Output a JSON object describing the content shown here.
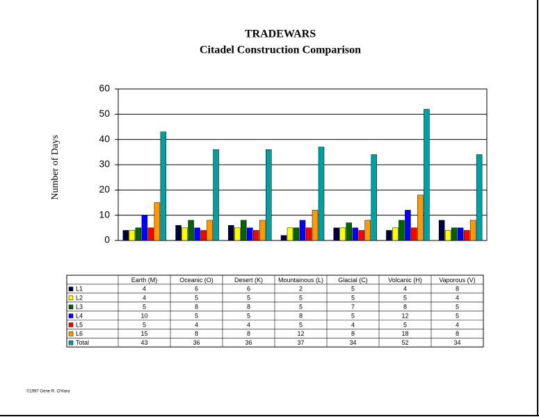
{
  "chart_data": {
    "type": "bar",
    "title": "TRADEWARS",
    "subtitle": "Citadel Construction Comparison",
    "y_label": "Number of Days",
    "categories": [
      "Earth (M)",
      "Oceanic (O)",
      "Desert (K)",
      "Mountainous (L)",
      "Glacial (C)",
      "Volcanic (H)",
      "Vaporous (V)"
    ],
    "series": [
      {
        "name": "L1",
        "color": "#000040",
        "values": [
          4,
          6,
          6,
          2,
          5,
          4,
          8
        ]
      },
      {
        "name": "L2",
        "color": "#ffff00",
        "values": [
          4,
          5,
          5,
          5,
          5,
          5,
          4
        ]
      },
      {
        "name": "L3",
        "color": "#006400",
        "values": [
          5,
          8,
          8,
          5,
          7,
          8,
          5
        ]
      },
      {
        "name": "L4",
        "color": "#0000ff",
        "values": [
          10,
          5,
          5,
          8,
          5,
          12,
          5
        ]
      },
      {
        "name": "L5",
        "color": "#ff0000",
        "values": [
          5,
          4,
          4,
          5,
          4,
          5,
          4
        ]
      },
      {
        "name": "L6",
        "color": "#ff9900",
        "values": [
          15,
          8,
          8,
          12,
          8,
          18,
          8
        ]
      },
      {
        "name": "Total",
        "color": "#00a0a0",
        "values": [
          43,
          36,
          36,
          37,
          34,
          52,
          34
        ]
      }
    ],
    "ylim": [
      0,
      60
    ],
    "yticks": [
      0,
      10,
      20,
      30,
      40,
      50,
      60
    ],
    "grid": true,
    "footer": "©1997 Gene R. O'Hara"
  }
}
